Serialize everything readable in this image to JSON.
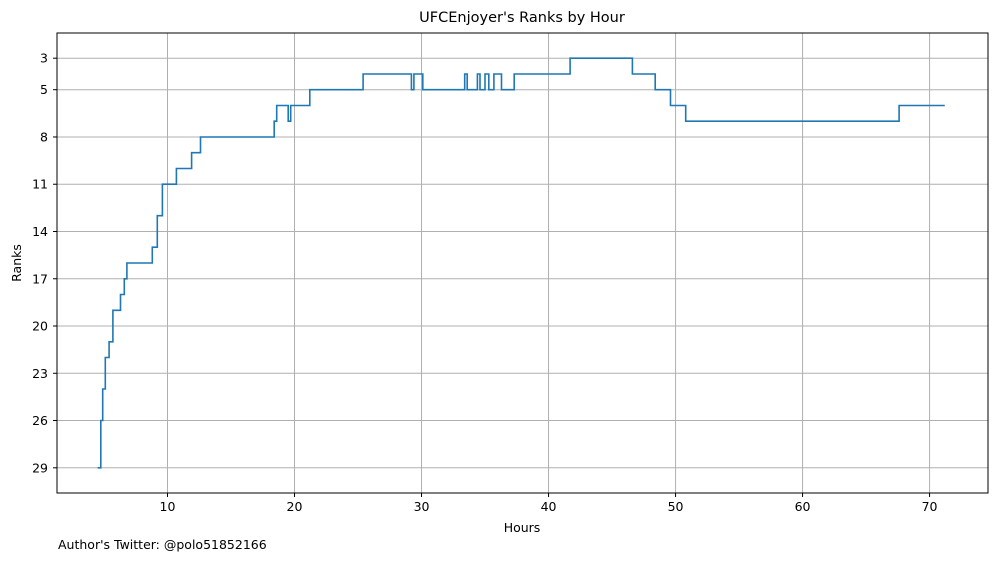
{
  "chart_data": {
    "type": "line",
    "drawstyle": "steps-post",
    "title": "UFCEnjoyer's Ranks by Hour",
    "xlabel": "Hours",
    "ylabel": "Ranks",
    "xlim": [
      1.3,
      74.6
    ],
    "ylim": [
      30.6,
      1.4
    ],
    "y_inverted": true,
    "xticks": [
      10,
      20,
      30,
      40,
      50,
      60,
      70
    ],
    "yticks": [
      3,
      5,
      8,
      11,
      14,
      17,
      20,
      23,
      26,
      29
    ],
    "grid": true,
    "series": [
      {
        "color": "#1f77b4",
        "x": [
          4.5,
          4.75,
          4.9,
          5.1,
          5.4,
          5.7,
          6.3,
          6.6,
          6.8,
          8.8,
          9.2,
          9.6,
          10.7,
          11.9,
          12.6,
          18.4,
          18.6,
          19.5,
          19.7,
          21.2,
          25.4,
          29.2,
          29.4,
          30.1,
          33.4,
          33.6,
          34.4,
          34.6,
          35.0,
          35.3,
          35.7,
          36.3,
          37.3,
          41.7,
          46.6,
          48.4,
          49.6,
          50.8,
          67.6,
          71.2
        ],
        "y": [
          29,
          26,
          24,
          22,
          21,
          19,
          18,
          17,
          16,
          15,
          13,
          11,
          10,
          9,
          8,
          7,
          6,
          7,
          6,
          5,
          4,
          5,
          4,
          5,
          4,
          5,
          4,
          5,
          4,
          5,
          4,
          5,
          4,
          3,
          4,
          5,
          6,
          7,
          6,
          6
        ]
      }
    ]
  },
  "footer": {
    "text": "Author's Twitter: @polo51852166"
  }
}
